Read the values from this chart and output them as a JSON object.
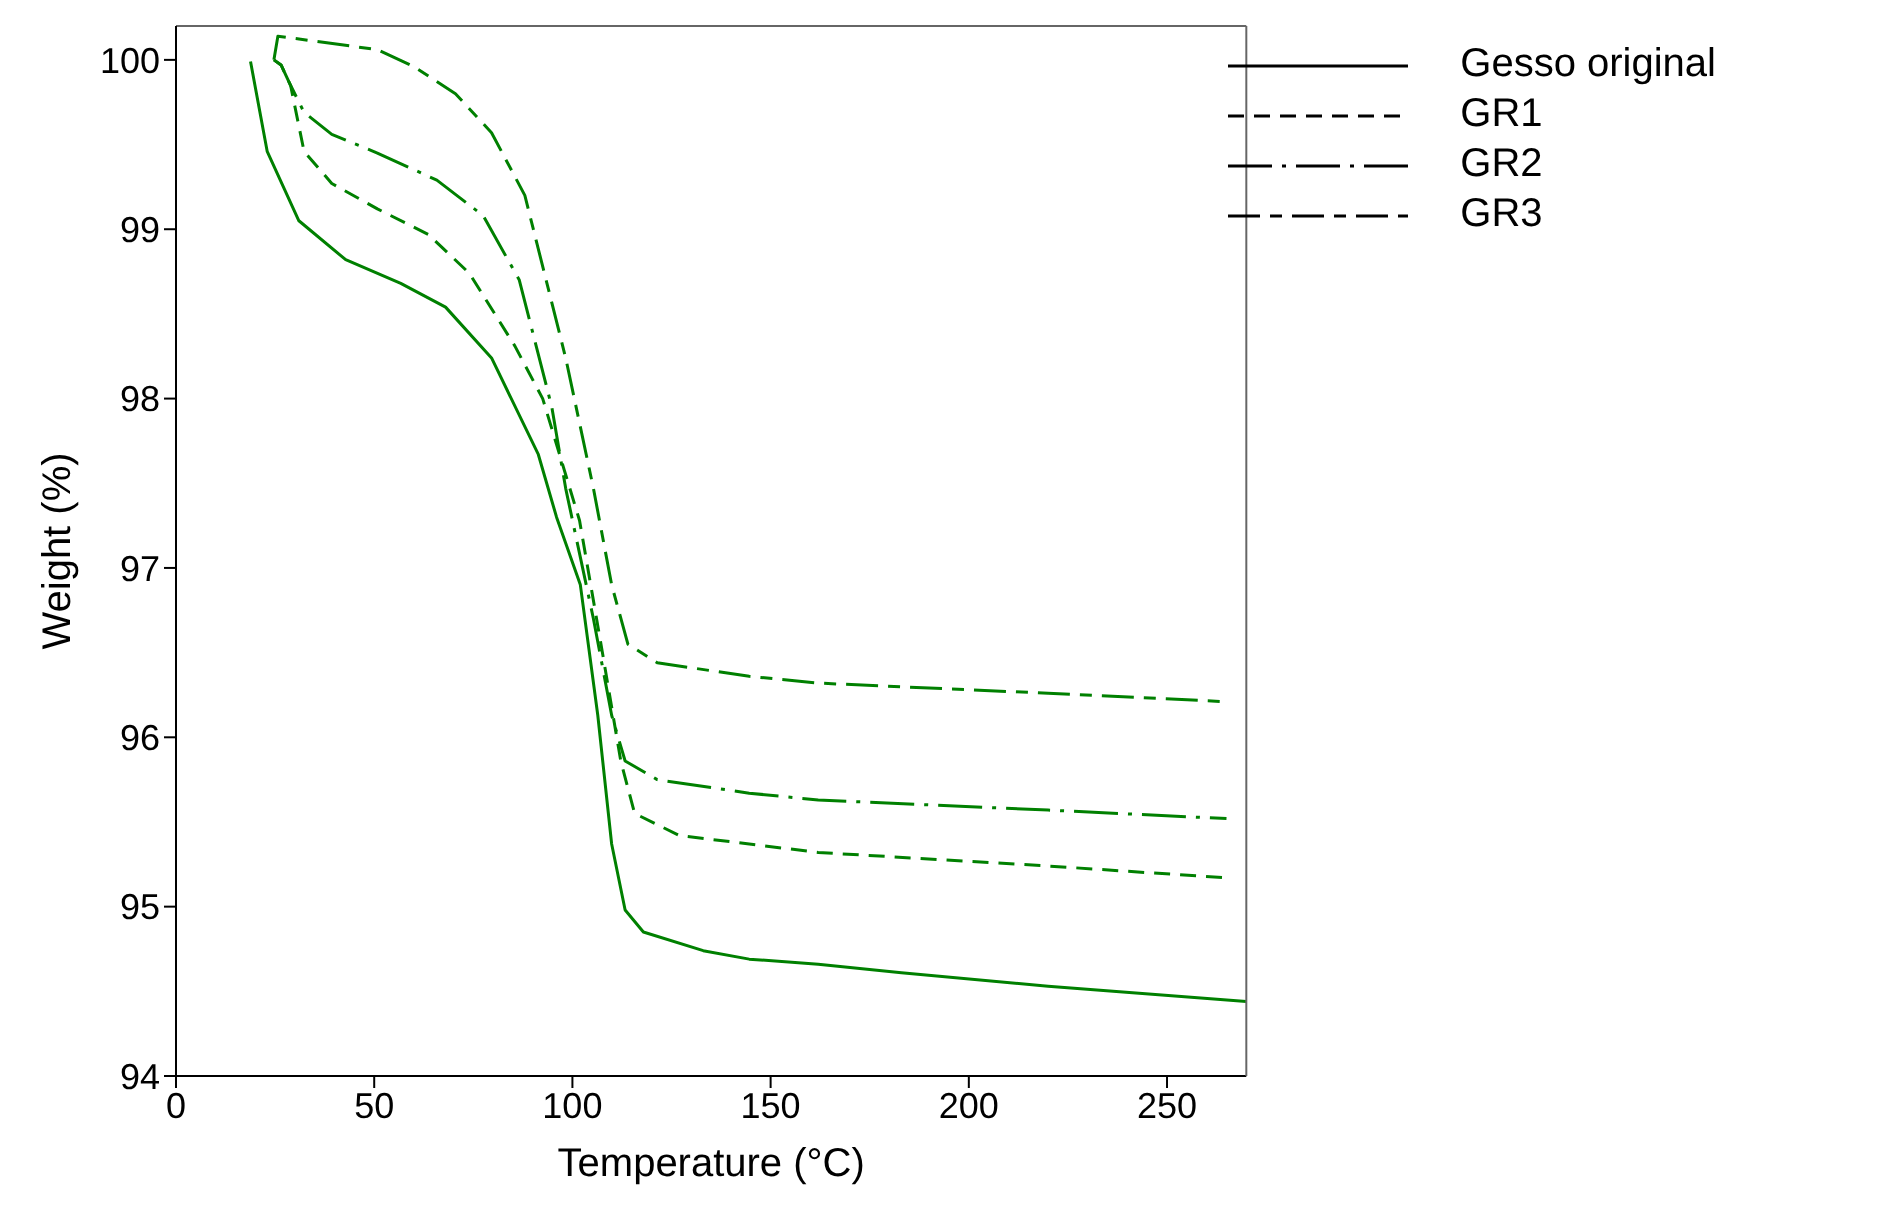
{
  "chart_data": {
    "type": "line",
    "xlabel": "Temperature (°C)",
    "ylabel": "Weight (%)",
    "xlim": [
      0,
      270
    ],
    "ylim": [
      94,
      100.2
    ],
    "xticks": [
      0,
      50,
      100,
      150,
      200,
      250
    ],
    "yticks": [
      94,
      95,
      96,
      97,
      98,
      99,
      100
    ],
    "grid": false,
    "legend": "top right",
    "marker": "none",
    "series": [
      {
        "name": "Gesso original",
        "color": "#008000",
        "line_style": "solid",
        "x": [
          18.8,
          23,
          31,
          42.8,
          56.7,
          68,
          79.6,
          91.4,
          96,
          102,
          106.4,
          109.9,
          113.3,
          117.9,
          133,
          144.6,
          162,
          183,
          220,
          270
        ],
        "values": [
          99.99,
          99.46,
          99.05,
          98.82,
          98.68,
          98.54,
          98.24,
          97.67,
          97.3,
          96.9,
          96.13,
          95.37,
          94.98,
          94.85,
          94.74,
          94.69,
          94.66,
          94.61,
          94.53,
          94.44
        ]
      },
      {
        "name": "GR1",
        "color": "#008000",
        "line_style": "dashed",
        "x": [
          24.7,
          26.5,
          28.9,
          32.3,
          39.3,
          50.8,
          63.6,
          74,
          85.5,
          92.5,
          101.8,
          107.5,
          112.2,
          115.7,
          127,
          144.6,
          162,
          220,
          265
        ],
        "values": [
          100.0,
          99.97,
          99.85,
          99.46,
          99.27,
          99.12,
          98.97,
          98.74,
          98.31,
          98.0,
          97.28,
          96.51,
          95.86,
          95.55,
          95.42,
          95.37,
          95.32,
          95.24,
          95.17
        ]
      },
      {
        "name": "GR2",
        "color": "#008000",
        "line_style": "dashdot",
        "x": [
          24.7,
          26.5,
          28.9,
          32.3,
          39.3,
          50.8,
          65.8,
          77.5,
          86.6,
          94.8,
          98.3,
          105.3,
          109.9,
          113.3,
          121.4,
          144.6,
          162,
          220,
          265
        ],
        "values": [
          100.0,
          99.97,
          99.85,
          99.69,
          99.56,
          99.45,
          99.29,
          99.08,
          98.7,
          97.95,
          97.47,
          96.7,
          96.13,
          95.86,
          95.75,
          95.67,
          95.63,
          95.57,
          95.52
        ]
      },
      {
        "name": "GR3",
        "color": "#008000",
        "line_style": "longdash",
        "x": [
          24.7,
          25.7,
          28.9,
          50.8,
          60,
          70.5,
          79.6,
          88,
          98.3,
          105.3,
          109.9,
          114,
          121.4,
          144.6,
          162,
          220,
          265
        ],
        "values": [
          100.0,
          100.14,
          100.13,
          100.06,
          99.96,
          99.8,
          99.57,
          99.2,
          98.24,
          97.47,
          96.9,
          96.55,
          96.44,
          96.36,
          96.32,
          96.26,
          96.21
        ]
      }
    ]
  }
}
